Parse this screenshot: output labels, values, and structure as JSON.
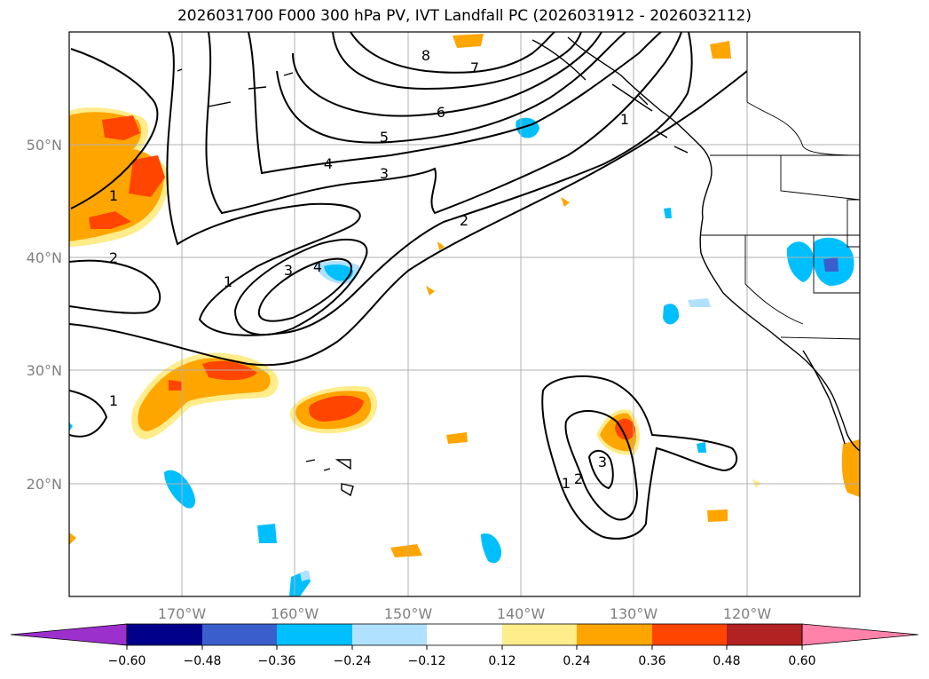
{
  "figure": {
    "title": "2026031700 F000 300 hPa PV, IVT Landfall PC (2026031912 - 2026032112)"
  },
  "map": {
    "lon_range": [
      -180,
      -110
    ],
    "lat_range": [
      10,
      60
    ],
    "longitude_labels": [
      "170°W",
      "160°W",
      "150°W",
      "140°W",
      "130°W",
      "120°W"
    ],
    "longitude_values": [
      -170,
      -160,
      -150,
      -140,
      -130,
      -120
    ],
    "latitude_labels": [
      "20°N",
      "30°N",
      "40°N",
      "50°N"
    ],
    "latitude_values": [
      20,
      30,
      40,
      50
    ],
    "pv_contour_labels": [
      "8",
      "7",
      "6",
      "5",
      "4",
      "3",
      "2",
      "1",
      "1",
      "1",
      "2",
      "3",
      "4",
      "1",
      "3",
      "2",
      "1"
    ]
  },
  "colorbar": {
    "tick_labels": [
      "−0.60",
      "−0.48",
      "−0.36",
      "−0.24",
      "−0.12",
      "0.12",
      "0.24",
      "0.36",
      "0.48",
      "0.60"
    ],
    "colors": [
      "#9b30cc",
      "#00008b",
      "#3a5fcd",
      "#00bfff",
      "#b0e2ff",
      "#ffffff",
      "#ffec8b",
      "#ffa500",
      "#ff4500",
      "#b22222",
      "#ff82ab"
    ]
  }
}
